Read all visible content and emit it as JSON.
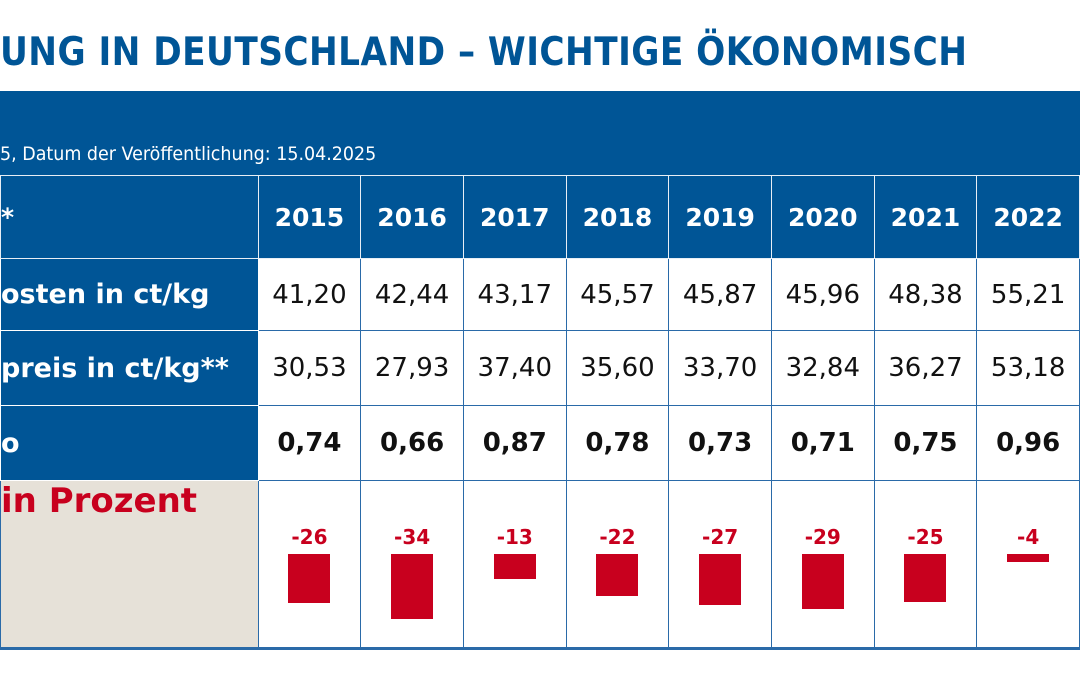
{
  "title": "UNG IN DEUTSCHLAND – WICHTIGE ÖKONOMISCH",
  "subtitle": "5, Datum der Veröffentlichung: 15.04.2025",
  "header_label": "*",
  "years": [
    "2015",
    "2016",
    "2017",
    "2018",
    "2019",
    "2020",
    "2021",
    "2022"
  ],
  "rows": [
    {
      "label": "osten in ct/kg",
      "values": [
        "41,20",
        "42,44",
        "43,17",
        "45,57",
        "45,87",
        "45,96",
        "48,38",
        "55,21"
      ]
    },
    {
      "label": "preis in ct/kg**",
      "values": [
        "30,53",
        "27,93",
        "37,40",
        "35,60",
        "33,70",
        "32,84",
        "36,27",
        "53,18"
      ]
    },
    {
      "label": "o",
      "values": [
        "0,74",
        "0,66",
        "0,87",
        "0,78",
        "0,73",
        "0,71",
        "0,75",
        "0,96"
      ]
    }
  ],
  "bar_row_label": "in Prozent",
  "colors": {
    "blue": "#005596",
    "red": "#c8001e",
    "beige": "#e6e1d8"
  },
  "chart_data": {
    "type": "bar",
    "categories": [
      "2015",
      "2016",
      "2017",
      "2018",
      "2019",
      "2020",
      "2021",
      "2022"
    ],
    "values": [
      -26,
      -34,
      -13,
      -22,
      -27,
      -29,
      -25,
      -4
    ],
    "data_labels": [
      "-26",
      "-34",
      "-13",
      "-22",
      "-27",
      "-29",
      "-25",
      "-4"
    ]
  }
}
